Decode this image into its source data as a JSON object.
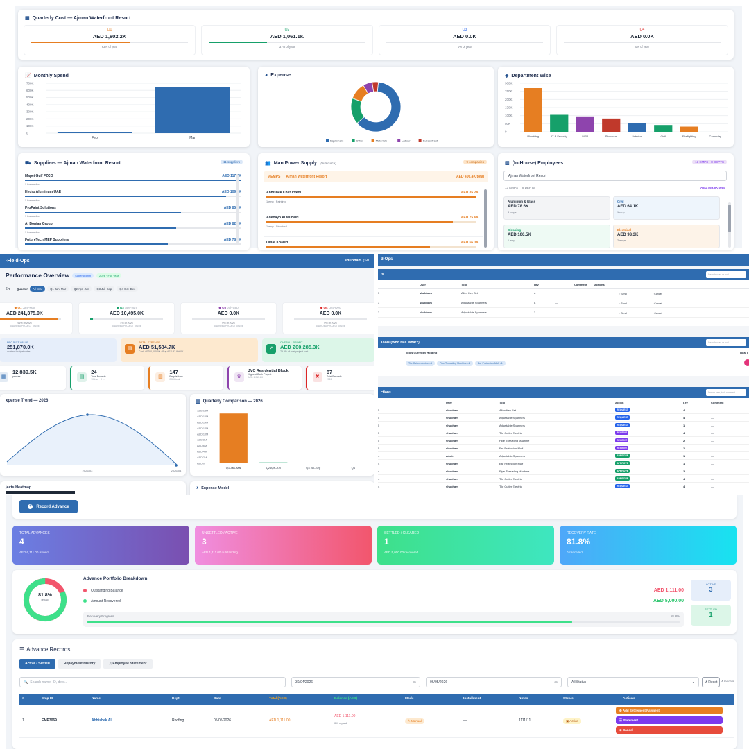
{
  "p1": {
    "quarter_title": "Quarterly Cost — Ajman Waterfront Resort",
    "quarters": [
      {
        "q": "Q1",
        "value": "AED 1,802.2K",
        "pct": "63% of year",
        "color": "#e67e22",
        "fill": 0.63
      },
      {
        "q": "Q2",
        "value": "AED 1,061.1K",
        "pct": "37% of year",
        "color": "#16a06a",
        "fill": 0.37
      },
      {
        "q": "Q3",
        "value": "AED 0.0K",
        "pct": "0% of year",
        "color": "#2563eb",
        "fill": 0
      },
      {
        "q": "Q4",
        "value": "AED 0.0K",
        "pct": "0% of year",
        "color": "#dc2626",
        "fill": 0
      }
    ],
    "monthly": {
      "title": "Monthly Spend",
      "y_ticks": [
        "700K",
        "600K",
        "500K",
        "400K",
        "300K",
        "200K",
        "100K",
        "0"
      ],
      "categories": [
        "Feb",
        "Mar"
      ],
      "values": [
        15000,
        650000
      ],
      "ymax": 700000
    },
    "expense": {
      "title": "Expense",
      "legend": [
        {
          "name": "Equipment",
          "color": "#2f6cb0",
          "value": 0.62
        },
        {
          "name": "Other",
          "color": "#16a06a",
          "value": 0.17
        },
        {
          "name": "Materials",
          "color": "#e67e22",
          "value": 0.11
        },
        {
          "name": "Labour",
          "color": "#8e44ad",
          "value": 0.06
        },
        {
          "name": "Subcontract",
          "color": "#c0392b",
          "value": 0.04
        }
      ]
    },
    "dept": {
      "title": "Department Wise",
      "y_ticks": [
        "300K",
        "250K",
        "200K",
        "150K",
        "100K",
        "50K",
        "0"
      ],
      "ymax": 300000,
      "bars": [
        {
          "name": "Plumbing",
          "value": 270000,
          "color": "#e67e22"
        },
        {
          "name": "IT & Security",
          "value": 105000,
          "color": "#16a06a"
        },
        {
          "name": "MEP",
          "value": 95000,
          "color": "#8e44ad"
        },
        {
          "name": "Structural",
          "value": 82000,
          "color": "#c0392b"
        },
        {
          "name": "Interior",
          "value": 52000,
          "color": "#2f6cb0"
        },
        {
          "name": "Civil",
          "value": 42000,
          "color": "#16a06a"
        },
        {
          "name": "Firefighting",
          "value": 32000,
          "color": "#e67e22"
        },
        {
          "name": "Carpentry",
          "value": 0,
          "color": "#8e44ad"
        }
      ]
    },
    "suppliers": {
      "title": "Suppliers — Ajman Waterfront Resort",
      "badge": "11 suppliers",
      "items": [
        {
          "name": "Mapei Gulf FZCO",
          "amount": "AED 117.7K",
          "sub": "1 transaction",
          "fill": 1
        },
        {
          "name": "Hydro Aluminum UAE",
          "amount": "AED 109.7K",
          "sub": "1 transaction",
          "fill": 0.93
        },
        {
          "name": "ProPaint Solutions",
          "amount": "AED 85.1K",
          "sub": "1 transaction",
          "fill": 0.72
        },
        {
          "name": "Al Bonian Group",
          "amount": "AED 82.0K",
          "sub": "1 transaction",
          "fill": 0.7
        },
        {
          "name": "FutureTech MEP Suppliers",
          "amount": "AED 78.7K",
          "sub": "",
          "fill": 0.66
        }
      ]
    },
    "manpower": {
      "title": "Man Power Supply",
      "subtitle": "(Outsource)",
      "badge": "9 companies",
      "emps": "9 EMPS",
      "project": "Ajman Waterfront Resort",
      "total": "AED 406.4K total",
      "items": [
        {
          "name": "Abhishek Chaturvedi",
          "amount": "AED 85.2K",
          "sub": "1 emp · Painting",
          "fill": 1
        },
        {
          "name": "Adebayo Al Muhairi",
          "amount": "AED 75.6K",
          "sub": "1 emp · Structural",
          "fill": 0.89
        },
        {
          "name": "Omar Khaled",
          "amount": "AED 66.3K",
          "sub": "",
          "fill": 0.78
        }
      ]
    },
    "inhouse": {
      "title": "(In-House) Employees",
      "badge": "13 EMPS · 8 DEPTS",
      "select": "Ajman Waterfront Resort",
      "emps": "13 EMPS",
      "depts": "8 DEPTS",
      "total": "AED 469.6K total",
      "cards": [
        {
          "name": "Aluminum & Glass",
          "value": "AED 78.6K",
          "sub": "3 emps",
          "bg": "#f3f4f6",
          "fg": "#1f2937"
        },
        {
          "name": "Civil",
          "value": "AED 64.1K",
          "sub": "1 emp",
          "bg": "#eef5fc",
          "fg": "#2f6cb0"
        },
        {
          "name": "Cleaning",
          "value": "AED 106.5K",
          "sub": "1 emp",
          "bg": "#eefaf4",
          "fg": "#16a06a"
        },
        {
          "name": "Electrical",
          "value": "AED 98.3K",
          "sub": "2 emps",
          "bg": "#fdf3e8",
          "fg": "#e67e22"
        }
      ]
    }
  },
  "p2": {
    "app": "-Field-Ops",
    "user": "shubham",
    "user_suffix": "(Su",
    "title": "Performance Overview",
    "badge1": "Super Admin",
    "badge2": "2026 · Full Year",
    "quarter_label": "Quarter",
    "quarter_tabs": [
      "All Year",
      "Q1 Jan–Mar",
      "Q2 Apr–Jun",
      "Q3 Jul–Sep",
      "Q4 Oct–Dec"
    ],
    "quarters": [
      {
        "q": "Q1",
        "range": "Jan–Mar",
        "value": "AED 241,375.0K",
        "pct": "96% of 2026",
        "lbl": "AWARDED PROJECT VALUE",
        "color": "#e67e22",
        "fill": 0.96
      },
      {
        "q": "Q2",
        "range": "Apr–Jun",
        "value": "AED 10,495.0K",
        "pct": "4% of 2026",
        "lbl": "AWARDED PROJECT VALUE",
        "color": "#16a06a",
        "fill": 0.04
      },
      {
        "q": "Q3",
        "range": "Jul–Sep",
        "value": "AED 0.0K",
        "pct": "0% of 2026",
        "lbl": "AWARDED PROJECT VALUE",
        "color": "#8e44ad",
        "fill": 0
      },
      {
        "q": "Q4",
        "range": "Oct–Dec",
        "value": "AED 0.0K",
        "pct": "0% of 2026",
        "lbl": "AWARDED PROJECT VALUE",
        "color": "#dc2626",
        "fill": 0
      }
    ],
    "kpi_project": {
      "label": "PROJECT VALUE",
      "value": "251,870.0K",
      "sub": "contract budget value"
    },
    "kpi_expense": {
      "label": "TOTAL EXPENSE",
      "value": "AED 51,584.7K",
      "sub": "Cash AED 0,000.0K · Buy AED 92.9%,0K"
    },
    "kpi_profit": {
      "label": "OVERALL PROFIT",
      "value": "AED 200,285.3K",
      "sub": "79.5% of total project cost"
    },
    "stats": [
      {
        "value": "12,839.5K",
        "label": "pences",
        "color": "#2f6cb0",
        "icon": "▦"
      },
      {
        "value": "24",
        "label": "Total Projects",
        "sub": "10 Live · 0 ...",
        "color": "#16a06a",
        "icon": "▤"
      },
      {
        "value": "147",
        "label": "Requisitions",
        "sub": "2026 total",
        "color": "#e67e22",
        "icon": "▥"
      },
      {
        "value": "JVC Residential Block",
        "label": "Highest Cash Project",
        "sub": "AED 1,015.2K",
        "color": "#8e44ad",
        "icon": "♛"
      },
      {
        "value": "87",
        "label": "Total Records",
        "sub": "2026",
        "color": "#dc2626",
        "icon": "✖"
      }
    ],
    "trend": {
      "title": "xpense Trend — 2026",
      "labels": [
        "2026-03",
        "2026-04"
      ]
    },
    "qcompare": {
      "title": "Quarterly Comparison — 2026",
      "y_ticks": [
        "AED 18M",
        "AED 16M",
        "AED 14M",
        "AED 12M",
        "AED 10M",
        "AED 8M",
        "AED 6M",
        "AED 4M",
        "AED 2M",
        "AED 0"
      ],
      "ymax": 18,
      "categories": [
        "Q1 Jan–Mar",
        "Q2 Apr–Jun",
        "Q3 Jul–Sep",
        "Q4 "
      ],
      "values": [
        17,
        0.3,
        0,
        0
      ],
      "color": "#e67e22"
    },
    "heatmap": "jects Heatmap",
    "expmodel": "Expense Model"
  },
  "p3": {
    "app": "d-Ops",
    "s1_title": "ts",
    "search": "Search user or tool...",
    "s1_cols": [
      "User",
      "Tool",
      "Qty",
      "Comment",
      "Actions"
    ],
    "s1_rows": [
      {
        "u": "shubham",
        "t": "Allen Key Set",
        "q": "4",
        "c": "",
        "a": "Send",
        "b": "Cancel"
      },
      {
        "u": "shubham",
        "t": "Adjustable Spanners",
        "q": "4",
        "c": "—",
        "a": "Send",
        "b": "Cancel"
      },
      {
        "u": "shubham",
        "t": "Adjustable Spanners",
        "q": "1",
        "c": "—",
        "a": "Send",
        "b": "Cancel"
      }
    ],
    "s2_title": "Tools (Who Has What?)",
    "s2_col": "Tools Currently Holding",
    "s2_col2": "Total I",
    "s2_tags": [
      "Tile Cutter electric ×4",
      "Pipe Threading Machine ×2",
      "Ear Protection Muff ×1"
    ],
    "s3_title": "ctions",
    "s3_search": "Search user, tool, comment...",
    "s3_cols": [
      "User",
      "Tool",
      "Action",
      "Qty",
      "Comment"
    ],
    "s3_rows": [
      {
        "u": "shubham",
        "t": "Allen Key Set",
        "a": "REQUEST",
        "q": "4",
        "c": "—",
        "col": "#2563eb"
      },
      {
        "u": "shubham",
        "t": "Adjustable Spanners",
        "a": "REQUEST",
        "q": "4",
        "c": "—",
        "col": "#2563eb"
      },
      {
        "u": "shubham",
        "t": "Adjustable Spanners",
        "a": "REQUEST",
        "q": "1",
        "c": "—",
        "col": "#2563eb"
      },
      {
        "u": "shubham",
        "t": "Tile Cutter Electric",
        "a": "RECEIVE",
        "q": "4",
        "c": "—",
        "col": "#7c3aed"
      },
      {
        "u": "shubham",
        "t": "Pipe Threading Machine",
        "a": "RECEIVE",
        "q": "2",
        "c": "—",
        "col": "#7c3aed"
      },
      {
        "u": "shubham",
        "t": "Ear Protection Muff",
        "a": "RECEIVE",
        "q": "1",
        "c": "—",
        "col": "#7c3aed"
      },
      {
        "u": "admin",
        "t": "Adjustable Spanners",
        "a": "APPROVE",
        "q": "1",
        "c": "—",
        "col": "#16a06a"
      },
      {
        "u": "shubham",
        "t": "Ear Protection Muff",
        "a": "APPROVE",
        "q": "1",
        "c": "—",
        "col": "#16a06a"
      },
      {
        "u": "shubham",
        "t": "Pipe Threading Machine",
        "a": "APPROVE",
        "q": "2",
        "c": "—",
        "col": "#16a06a"
      },
      {
        "u": "shubham",
        "t": "Tile Cutter Electric",
        "a": "APPROVE",
        "q": "4",
        "c": "—",
        "col": "#16a06a"
      },
      {
        "u": "shubham",
        "t": "Tile Cutter Electric",
        "a": "REQUEST",
        "q": "4",
        "c": "—",
        "col": "#2563eb"
      }
    ]
  },
  "p4": {
    "record_btn": "Record Advance",
    "kpis": [
      {
        "label": "TOTAL ADVANCES",
        "value": "4",
        "sub": "AED 6,111.00 issued",
        "bg": "linear-gradient(90deg,#6b7fe3,#7a4fb0)"
      },
      {
        "label": "UNSETTLED / ACTIVE",
        "value": "3",
        "sub": "AED 1,111.00 outstanding",
        "bg": "linear-gradient(90deg,#f08ee0,#f2566d)"
      },
      {
        "label": "SETTLED / CLEARED",
        "value": "1",
        "sub": "AED 5,000.00 recovered",
        "bg": "linear-gradient(90deg,#3ee08a,#3ee6c0)"
      },
      {
        "label": "RECOVERY RATE",
        "value": "81.8%",
        "sub": "0 cancelled",
        "bg": "linear-gradient(90deg,#4fa7f9,#18e3f0)"
      }
    ],
    "breakdown_title": "Advance Portfolio Breakdown",
    "donut_pct": "81.8%",
    "donut_sub": "repaid",
    "donut_fill": 0.818,
    "out_label": "Outstanding Balance",
    "out_value": "AED 1,111.00",
    "rec_label": "Amount Recovered",
    "rec_value": "AED 5,000.00",
    "progress_label": "Recovery Progress",
    "progress_pct": "81.8%",
    "progress": 0.818,
    "active_label": "ACTIVE",
    "active_value": "3",
    "settled_label": "SETTLED",
    "settled_value": "1",
    "records_title": "Advance Records",
    "tabs": [
      "Active / Settled",
      "Repayment History",
      "Employee Statement"
    ],
    "search_ph": "Search name, ID, dept...",
    "date_from": "30/04/2026",
    "date_to": "06/05/2026",
    "status": "All Status",
    "reset": "Reset",
    "count": "4 records",
    "cols": [
      "#",
      "Emp ID",
      "Name",
      "Dept",
      "Date",
      "Total (AED)",
      "Balance (AED)",
      "Mode",
      "Installment",
      "Notes",
      "Status",
      "Actions"
    ],
    "row": {
      "n": "1",
      "id": "EMP3069",
      "name": "Abhishek Ali",
      "dept": "Roofing",
      "date": "05/05/2026",
      "total": "AED 1,111.00",
      "bal": "AED 1,111.00",
      "bal_sub": "0% repaid",
      "mode": "Manual",
      "inst": "—",
      "notes": "1111111",
      "status": "Active"
    },
    "actions": [
      "Add Settlement Payment",
      "Statement",
      "Cancel"
    ]
  }
}
